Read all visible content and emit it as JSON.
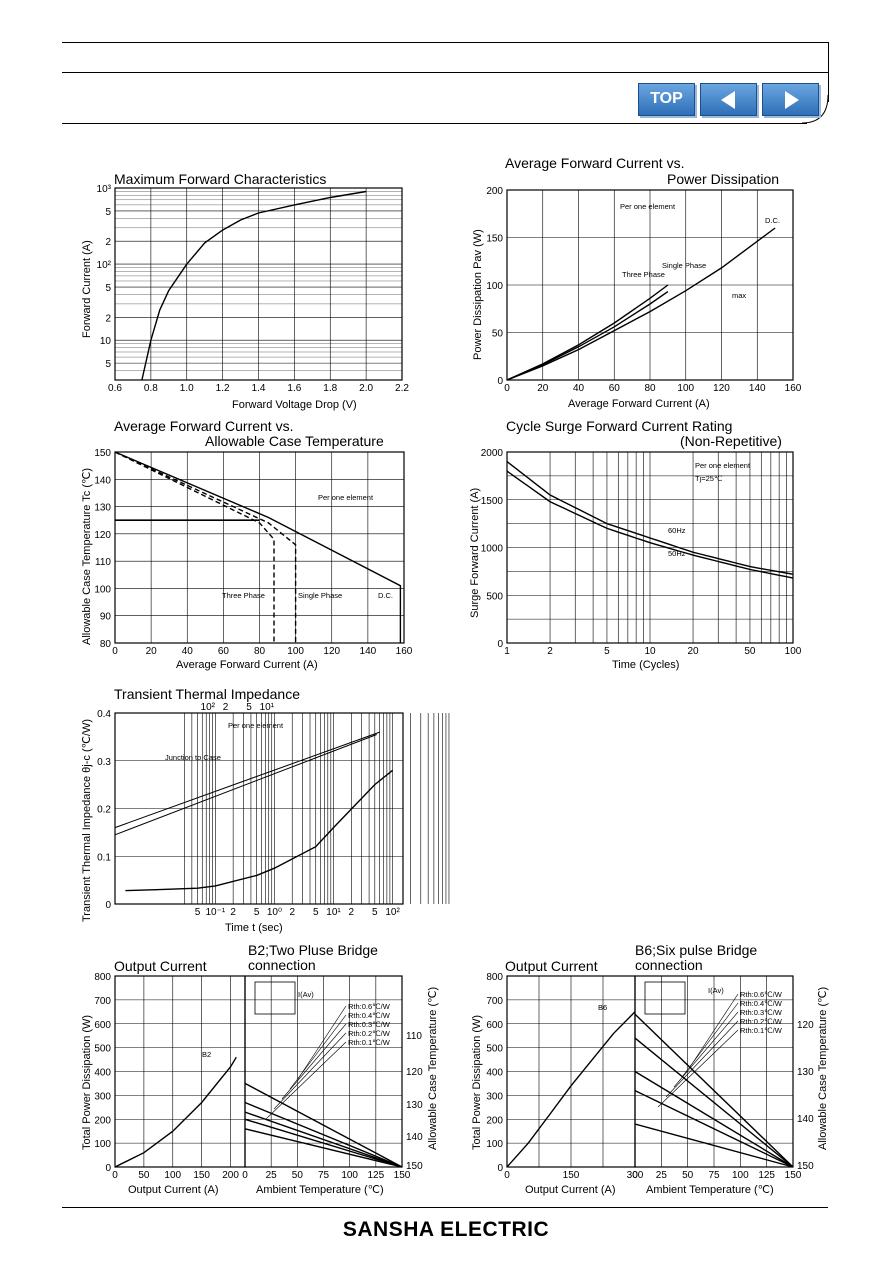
{
  "nav": {
    "top_label": "TOP",
    "prev_icon": "arrow-left-icon",
    "next_icon": "arrow-right-icon"
  },
  "footer": {
    "brand": "SANSHA ELECTRIC"
  },
  "charts": {
    "c1": {
      "title": "Maximum Forward Characteristics",
      "xlabel": "Forward Voltage Drop (V)",
      "ylabel": "Forward Current (A)",
      "xticks": [
        "0.6",
        "0.8",
        "1.0",
        "1.2",
        "1.4",
        "1.6",
        "1.8",
        "2.0",
        "2.2"
      ],
      "yticks": [
        "10³",
        "5",
        "2",
        "10²",
        "5",
        "2",
        "10",
        "5"
      ]
    },
    "c2": {
      "title1": "Average Forward Current vs.",
      "title2": "Power Dissipation",
      "xlabel": "Average Forward Current (A)",
      "ylabel": "Power Dissipation Pav (W)",
      "xticks": [
        "0",
        "20",
        "40",
        "60",
        "80",
        "100",
        "120",
        "140",
        "160"
      ],
      "yticks": [
        "0",
        "50",
        "100",
        "150",
        "200"
      ],
      "notes": {
        "per": "Per one element",
        "dc": "D.C.",
        "single": "Single Phase",
        "three": "Three Phase",
        "max": "max"
      }
    },
    "c3": {
      "title1": "Average Forward Current vs.",
      "title2": "Allowable Case Temperature",
      "xlabel": "Average Forward Current (A)",
      "ylabel": "Allowable Case Temperature Tc (℃)",
      "xticks": [
        "0",
        "20",
        "40",
        "60",
        "80",
        "100",
        "120",
        "140",
        "160"
      ],
      "yticks": [
        "80",
        "90",
        "100",
        "110",
        "120",
        "130",
        "140",
        "150"
      ],
      "notes": {
        "per": "Per one element",
        "three": "Three Phase",
        "single": "Single Phase",
        "dc": "D.C."
      }
    },
    "c4": {
      "title1": "Cycle Surge Forward Current Rating",
      "title2": "(Non-Repetitive)",
      "xlabel": "Time (Cycles)",
      "ylabel": "Surge Forward Current (A)",
      "xticks": [
        "1",
        "2",
        "5",
        "10",
        "20",
        "50",
        "100"
      ],
      "yticks": [
        "0",
        "500",
        "1000",
        "1500",
        "2000"
      ],
      "notes": {
        "per": "Per one element",
        "tj": "Tj=25℃",
        "hz60": "60Hz",
        "hz50": "50Hz"
      }
    },
    "c5": {
      "title": "Transient Thermal Impedance",
      "xlabel": "Time t (sec)",
      "ylabel": "Transient Thermal Impedance θj-c (℃/W)",
      "xticks": [
        "5",
        "10⁻¹",
        "2",
        "5",
        "10⁰",
        "2",
        "5",
        "10¹",
        "2",
        "5",
        "10²"
      ],
      "xticks_top": [
        "10²",
        "2",
        "5",
        "10¹"
      ],
      "yticks": [
        "0",
        "0.1",
        "0.2",
        "0.3",
        "0.4"
      ],
      "notes": {
        "per": "Per one element",
        "jc": "Junction to Case"
      }
    },
    "c6": {
      "title_left": "Output Current",
      "title_right1": "B2;Two Pluse Bridge",
      "title_right2": "connection",
      "ylabel": "Total Power Dissipation (W)",
      "xlabel_left": "Output Current (A)",
      "xlabel_right": "Ambient Temperature (℃)",
      "ylabel_right": "Allowable Case Temperature (℃)",
      "yticks": [
        "0",
        "100",
        "200",
        "300",
        "400",
        "500",
        "600",
        "700",
        "800"
      ],
      "xticks_left": [
        "0",
        "50",
        "100",
        "150",
        "200"
      ],
      "xticks_right": [
        "0",
        "25",
        "50",
        "75",
        "100",
        "125",
        "150"
      ],
      "yticks_right": [
        "110",
        "120",
        "130",
        "140",
        "150"
      ],
      "curve_label": "B2",
      "io_label": "I(Av)",
      "rth": [
        "Rth:0.6℃/W",
        "Rth:0.4℃/W",
        "Rth:0.3℃/W",
        "Rth:0.2℃/W",
        "Rth:0.1℃/W"
      ]
    },
    "c7": {
      "title_left": "Output Current",
      "title_right1": "B6;Six pulse Bridge",
      "title_right2": "connection",
      "ylabel": "Total Power Dissipation (W)",
      "xlabel_left": "Output Current (A)",
      "xlabel_right": "Ambient Temperature (℃)",
      "ylabel_right": "Allowable Case Temperature (℃)",
      "yticks": [
        "0",
        "100",
        "200",
        "300",
        "400",
        "500",
        "600",
        "700",
        "800"
      ],
      "xticks_left": [
        "0",
        "150",
        "300"
      ],
      "xticks_right": [
        "0",
        "25",
        "50",
        "75",
        "100",
        "125",
        "150"
      ],
      "yticks_right": [
        "120",
        "130",
        "140",
        "150"
      ],
      "curve_label": "B6",
      "io_label": "I(Av)",
      "rth": [
        "Rth:0.6℃/W",
        "Rth:0.4℃/W",
        "Rth:0.3℃/W",
        "Rth:0.2℃/W",
        "Rth:0.1℃/W"
      ]
    }
  },
  "chart_data": [
    {
      "type": "line",
      "title": "Maximum Forward Characteristics",
      "xlabel": "Forward Voltage Drop (V)",
      "ylabel": "Forward Current (A)",
      "yscale": "log",
      "xlim": [
        0.6,
        2.2
      ],
      "ylim": [
        3,
        1000
      ],
      "series": [
        {
          "x": [
            0.75,
            0.8,
            0.85,
            0.9,
            1.0,
            1.1,
            1.2,
            1.3,
            1.4,
            1.6,
            1.8,
            2.0
          ],
          "y": [
            3,
            10,
            25,
            45,
            100,
            190,
            280,
            380,
            470,
            600,
            750,
            900
          ]
        }
      ]
    },
    {
      "type": "line",
      "title": "Average Forward Current vs. Power Dissipation",
      "xlabel": "Average Forward Current (A)",
      "ylabel": "Power Dissipation Pav (W)",
      "xlim": [
        0,
        160
      ],
      "ylim": [
        0,
        200
      ],
      "series": [
        {
          "name": "D.C.",
          "x": [
            0,
            20,
            40,
            60,
            80,
            100,
            120,
            150
          ],
          "y": [
            0,
            15,
            32,
            52,
            72,
            94,
            118,
            160
          ]
        },
        {
          "name": "Single Phase",
          "x": [
            0,
            20,
            40,
            60,
            80,
            90
          ],
          "y": [
            0,
            16,
            35,
            56,
            80,
            93
          ]
        },
        {
          "name": "Three Phase",
          "x": [
            0,
            20,
            40,
            60,
            80,
            90
          ],
          "y": [
            0,
            17,
            37,
            60,
            86,
            100
          ]
        }
      ]
    },
    {
      "type": "line",
      "title": "Average Forward Current vs. Allowable Case Temperature",
      "xlabel": "Average Forward Current (A)",
      "ylabel": "Allowable Case Temperature Tc (℃)",
      "xlim": [
        0,
        160
      ],
      "ylim": [
        80,
        150
      ],
      "series": [
        {
          "name": "D.C.",
          "x": [
            0,
            85,
            158,
            158
          ],
          "y": [
            150,
            126,
            101,
            80
          ]
        },
        {
          "name": "Single Phase",
          "x": [
            0,
            85,
            100,
            100
          ],
          "y": [
            150,
            124,
            116,
            80
          ]
        },
        {
          "name": "Three Phase",
          "x": [
            0,
            80,
            88,
            88
          ],
          "y": [
            150,
            124,
            118,
            80
          ]
        }
      ]
    },
    {
      "type": "line",
      "title": "Cycle Surge Forward Current Rating (Non-Repetitive)",
      "xlabel": "Time (Cycles)",
      "ylabel": "Surge Forward Current (A)",
      "xscale": "log",
      "xlim": [
        1,
        100
      ],
      "ylim": [
        0,
        2000
      ],
      "series": [
        {
          "name": "60Hz",
          "x": [
            1,
            2,
            5,
            10,
            20,
            50,
            100
          ],
          "y": [
            1900,
            1550,
            1250,
            1100,
            950,
            800,
            720
          ]
        },
        {
          "name": "50Hz",
          "x": [
            1,
            2,
            5,
            10,
            20,
            50,
            100
          ],
          "y": [
            1800,
            1480,
            1200,
            1050,
            920,
            770,
            680
          ]
        }
      ]
    },
    {
      "type": "line",
      "title": "Transient Thermal Impedance",
      "xlabel": "Time t (sec)",
      "ylabel": "Transient Thermal Impedance θj-c (℃/W)",
      "xscale": "log",
      "ylim": [
        0,
        0.4
      ],
      "series": [
        {
          "x": [
            0.003,
            0.01,
            0.05,
            0.1,
            0.5,
            1,
            5,
            10,
            50,
            100
          ],
          "y": [
            0.028,
            0.03,
            0.033,
            0.038,
            0.06,
            0.075,
            0.12,
            0.16,
            0.25,
            0.28
          ]
        }
      ]
    },
    {
      "type": "line",
      "title": "Output Current / B2;Two Pluse Bridge connection",
      "xlabel": "Output Current (A)",
      "ylabel": "Total Power Dissipation (W)",
      "xlim": [
        0,
        225
      ],
      "ylim": [
        0,
        800
      ],
      "series": [
        {
          "name": "B2",
          "x": [
            0,
            50,
            100,
            150,
            200,
            210
          ],
          "y": [
            0,
            60,
            150,
            270,
            420,
            460
          ]
        }
      ]
    },
    {
      "type": "line",
      "title": "Output Current / B6;Six pulse Bridge connection",
      "xlabel": "Output Current (A)",
      "ylabel": "Total Power Dissipation (W)",
      "xlim": [
        0,
        300
      ],
      "ylim": [
        0,
        800
      ],
      "series": [
        {
          "name": "B6",
          "x": [
            0,
            50,
            100,
            150,
            200,
            250,
            300
          ],
          "y": [
            0,
            100,
            220,
            340,
            450,
            560,
            650
          ]
        }
      ]
    }
  ]
}
